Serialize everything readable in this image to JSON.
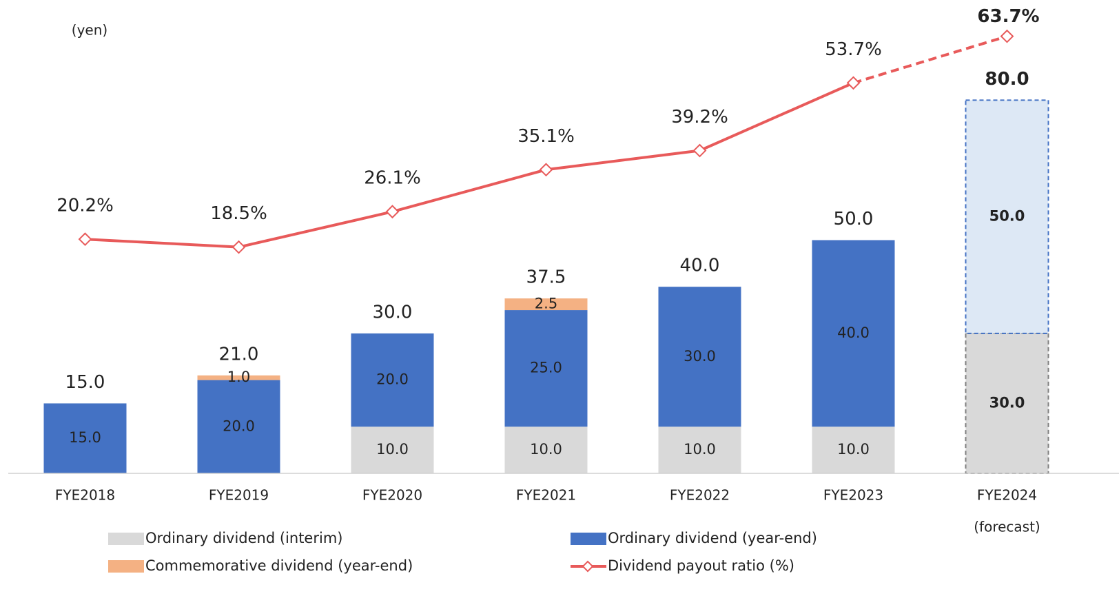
{
  "chart_data": {
    "type": "bar",
    "y_label": "(yen)",
    "categories": [
      "FYE2018",
      "FYE2019",
      "FYE2020",
      "FYE2021",
      "FYE2022",
      "FYE2023",
      "FYE2024"
    ],
    "forecast_label": "(forecast)",
    "ylim": [
      0,
      100
    ],
    "y2lim": [
      -30,
      70
    ],
    "series": [
      {
        "name": "Ordinary dividend (interim)",
        "color": "#d9d9d9",
        "forecast_color": "#d9d9d9",
        "forecast_border": "#7f7f7f",
        "values": [
          null,
          null,
          10,
          10,
          10,
          10,
          30
        ],
        "value_labels": [
          null,
          null,
          "10.0",
          "10.0",
          "10.0",
          "10.0",
          "30.0"
        ]
      },
      {
        "name": "Ordinary dividend (year-end)",
        "color": "#4472c4",
        "forecast_color": "#dde8f5",
        "forecast_border": "#4472c4",
        "values": [
          15,
          20,
          20,
          25,
          30,
          40,
          50
        ],
        "value_labels": [
          "15.0",
          "20.0",
          "20.0",
          "25.0",
          "30.0",
          "40.0",
          "50.0"
        ]
      },
      {
        "name": "Commemorative dividend (year-end)",
        "color": "#f4b183",
        "values": [
          null,
          1,
          null,
          2.5,
          null,
          null,
          null
        ],
        "value_labels": [
          null,
          "1.0",
          null,
          "2.5",
          null,
          null,
          null
        ]
      },
      {
        "name": "Dividend payout ratio (%)",
        "type": "line",
        "axis": "y2",
        "color": "#e85a5a",
        "values": [
          20.2,
          18.5,
          26.1,
          35.1,
          39.2,
          53.7,
          63.7
        ],
        "value_labels": [
          "20.2%",
          "18.5%",
          "26.1%",
          "35.1%",
          "39.2%",
          "53.7%",
          "63.7%"
        ]
      }
    ],
    "totals": [
      15,
      21,
      30,
      37.5,
      40,
      50,
      80
    ],
    "total_labels": [
      "15.0",
      "21.0",
      "30.0",
      "37.5",
      "40.0",
      "50.0",
      "80.0"
    ]
  }
}
